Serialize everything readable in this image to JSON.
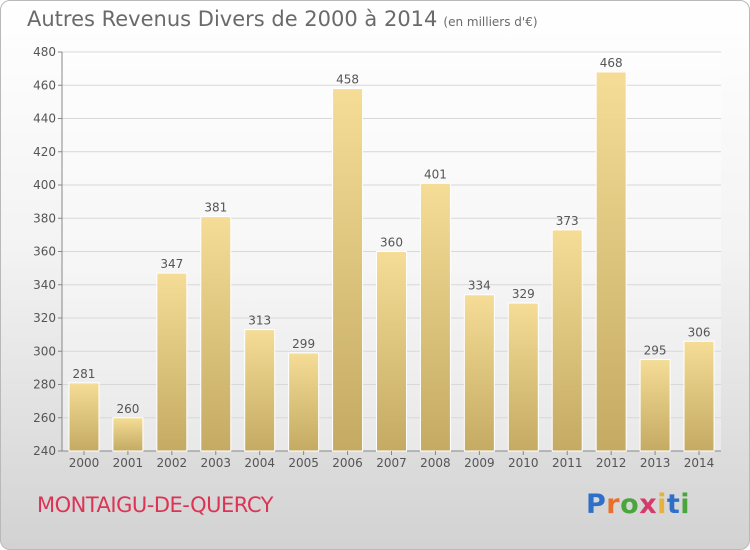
{
  "title": "Autres Revenus Divers de 2000 à 2014",
  "subtitle": "(en milliers d'€)",
  "commune": "MONTAIGU-DE-QUERCY",
  "logo": {
    "letters": [
      "P",
      "r",
      "o",
      "x",
      "i",
      "t",
      "i"
    ],
    "colors": [
      "#2f6fc9",
      "#e8702a",
      "#4aa63c",
      "#d63a6a",
      "#e8b23a",
      "#2f6fc9",
      "#4aa63c"
    ]
  },
  "colors": {
    "bar_light": "#f5dd97",
    "bar_dark": "#c4aa62",
    "text": "#555555",
    "commune": "#dd3355",
    "grid": "#d8d8d8"
  },
  "chart_data": {
    "type": "bar",
    "categories": [
      "2000",
      "2001",
      "2002",
      "2003",
      "2004",
      "2005",
      "2006",
      "2007",
      "2008",
      "2009",
      "2010",
      "2011",
      "2012",
      "2013",
      "2014"
    ],
    "values": [
      281,
      260,
      347,
      381,
      313,
      299,
      458,
      360,
      401,
      334,
      329,
      373,
      468,
      295,
      306
    ],
    "ylim": [
      240,
      480
    ],
    "yticks": [
      240,
      260,
      280,
      300,
      320,
      340,
      360,
      380,
      400,
      420,
      440,
      460,
      480
    ],
    "grid": true
  }
}
